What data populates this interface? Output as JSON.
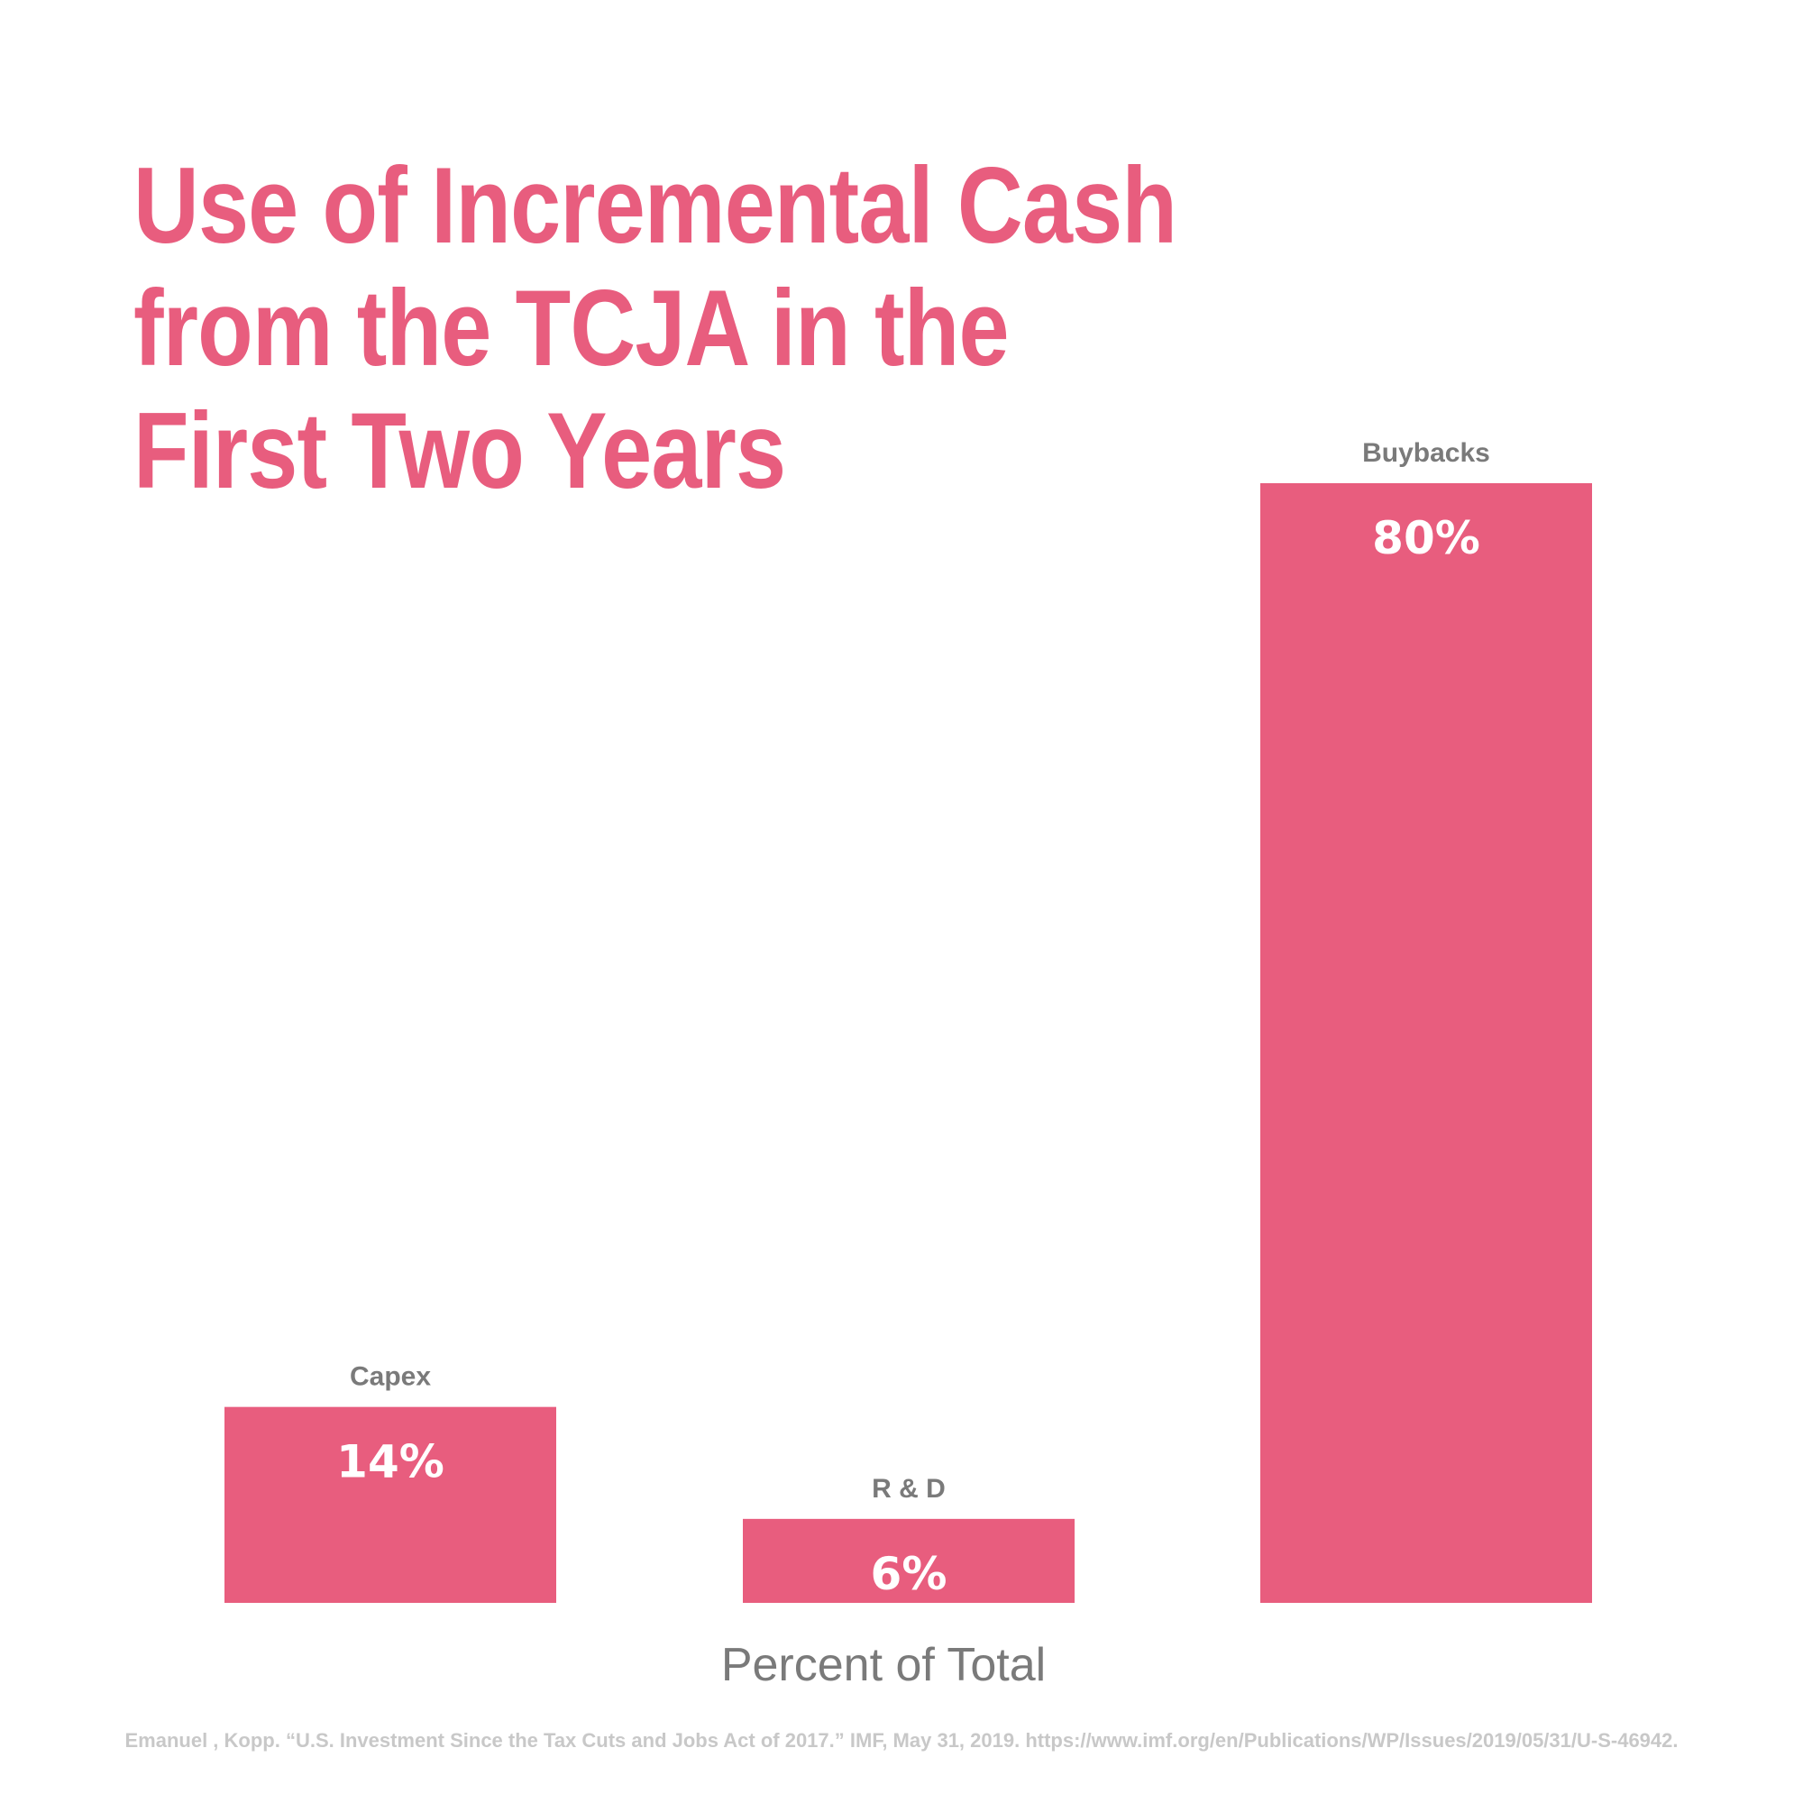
{
  "chart_data": {
    "type": "bar",
    "title_lines": [
      "Use of Incremental Cash",
      "from the TCJA in the",
      "First Two Years"
    ],
    "categories": [
      "Capex",
      "R & D",
      "Buybacks"
    ],
    "values": [
      14,
      6,
      80
    ],
    "value_labels": [
      "14%",
      "6%",
      "80%"
    ],
    "xlabel": "Percent of Total",
    "ylabel": "",
    "ylim": [
      0,
      80
    ],
    "grid": false,
    "bar_color": "#e85d7e",
    "category_label_color": "#7a7a7a",
    "value_label_color": "#ffffff"
  },
  "source": "Emanuel , Kopp. “U.S. Investment Since the Tax Cuts and Jobs Act of 2017.” IMF, May 31, 2019. https://www.imf.org/en/Publications/WP/Issues/2019/05/31/U-S-46942."
}
